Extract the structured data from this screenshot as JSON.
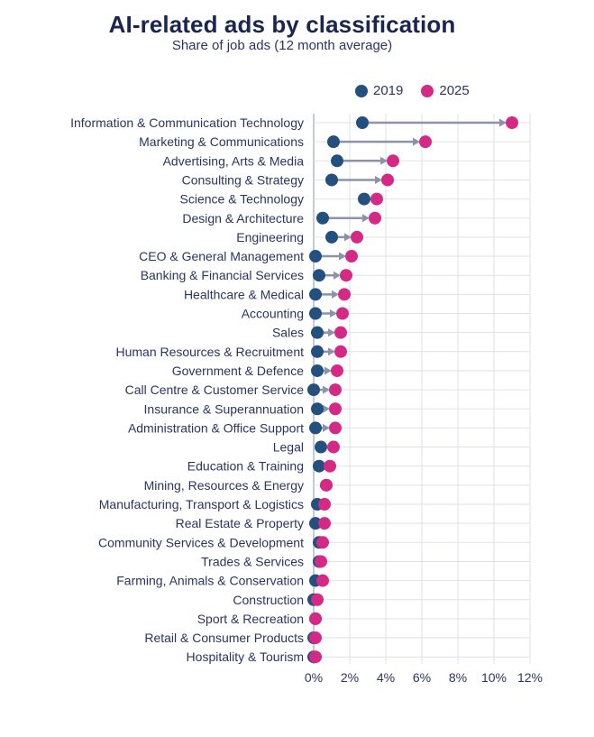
{
  "colors": {
    "series_2019": "#24507f",
    "series_2025": "#d42a86",
    "connector": "#8b93a8",
    "grid": "#dfe2ea",
    "axis": "#c5cad8"
  },
  "chart_data": {
    "type": "dumbbell",
    "title": "AI-related ads by classification",
    "subtitle": "Share of job ads (12 month average)",
    "xlabel": "",
    "ylabel": "",
    "xlim": [
      0,
      12
    ],
    "x_ticks": [
      0,
      2,
      4,
      6,
      8,
      10,
      12
    ],
    "x_tick_labels": [
      "0%",
      "2%",
      "4%",
      "6%",
      "8%",
      "10%",
      "12%"
    ],
    "grid": true,
    "legend_position": "top-right",
    "legend": [
      "2019",
      "2025"
    ],
    "categories": [
      "Information & Communication Technology",
      "Marketing & Communications",
      "Advertising, Arts & Media",
      "Consulting & Strategy",
      "Science & Technology",
      "Design & Architecture",
      "Engineering",
      "CEO & General Management",
      "Banking & Financial Services",
      "Healthcare & Medical",
      "Accounting",
      "Sales",
      "Human Resources & Recruitment",
      "Government & Defence",
      "Call Centre & Customer Service",
      "Insurance & Superannuation",
      "Administration & Office Support",
      "Legal",
      "Education & Training",
      "Mining, Resources & Energy",
      "Manufacturing, Transport & Logistics",
      "Real Estate & Property",
      "Community Services & Development",
      "Trades & Services",
      "Farming, Animals & Conservation",
      "Construction",
      "Sport & Recreation",
      "Retail & Consumer Products",
      "Hospitality & Tourism"
    ],
    "series": [
      {
        "name": "2019",
        "values": [
          2.7,
          1.1,
          1.3,
          1.0,
          2.8,
          0.5,
          1.0,
          0.1,
          0.3,
          0.1,
          0.1,
          0.2,
          0.2,
          0.2,
          0.0,
          0.2,
          0.1,
          0.4,
          0.3,
          0.7,
          0.2,
          0.1,
          0.3,
          0.3,
          0.1,
          0.0,
          0.1,
          0.0,
          0.0
        ]
      },
      {
        "name": "2025",
        "values": [
          11.0,
          6.2,
          4.4,
          4.1,
          3.5,
          3.4,
          2.4,
          2.1,
          1.8,
          1.7,
          1.6,
          1.5,
          1.5,
          1.3,
          1.2,
          1.2,
          1.2,
          1.1,
          0.9,
          0.7,
          0.6,
          0.6,
          0.5,
          0.4,
          0.5,
          0.2,
          0.1,
          0.1,
          0.1
        ]
      }
    ]
  }
}
